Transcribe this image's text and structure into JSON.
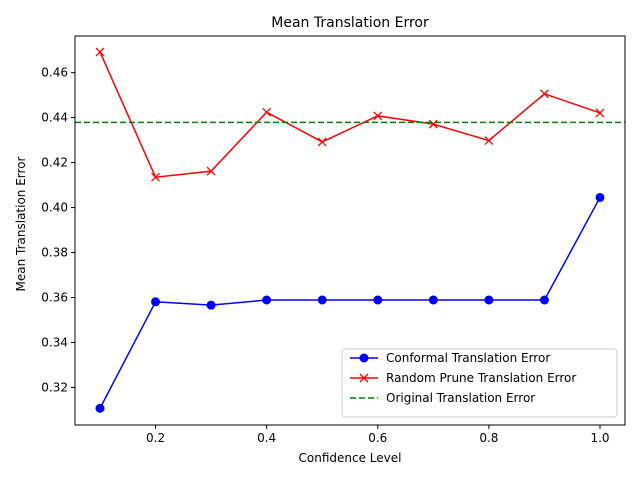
{
  "chart_data": {
    "type": "line",
    "title": "Mean Translation Error",
    "xlabel": "Confidence Level",
    "ylabel": "Mean Translation Error",
    "xlim": [
      0.055,
      1.045
    ],
    "ylim": [
      0.3033,
      0.4763
    ],
    "xticks": [
      0.2,
      0.4,
      0.6,
      0.8,
      1.0
    ],
    "xtick_labels": [
      "0.2",
      "0.4",
      "0.6",
      "0.8",
      "1.0"
    ],
    "yticks": [
      0.32,
      0.34,
      0.36,
      0.38,
      0.4,
      0.42,
      0.44,
      0.46
    ],
    "ytick_labels": [
      "0.32",
      "0.34",
      "0.36",
      "0.38",
      "0.40",
      "0.42",
      "0.44",
      "0.46"
    ],
    "grid": false,
    "legend_position": "lower-right",
    "x": [
      0.1,
      0.2,
      0.3,
      0.4,
      0.5,
      0.6,
      0.7,
      0.8,
      0.9,
      1.0
    ],
    "series": [
      {
        "name": "Conformal Translation Error",
        "color": "#0000ff",
        "marker": "circle",
        "line_style": "solid",
        "values": [
          0.3107,
          0.3581,
          0.3566,
          0.3589,
          0.3589,
          0.3589,
          0.3589,
          0.3589,
          0.3589,
          0.4045
        ]
      },
      {
        "name": "Random Prune Translation Error",
        "color": "#ff0000",
        "marker": "x",
        "line_style": "solid",
        "values": [
          0.4692,
          0.4135,
          0.4162,
          0.4424,
          0.4292,
          0.4408,
          0.4371,
          0.4298,
          0.4506,
          0.4421
        ]
      },
      {
        "name": "Original Translation Error",
        "color": "#008000",
        "line_style": "dashed",
        "constant": 0.4379
      }
    ]
  }
}
